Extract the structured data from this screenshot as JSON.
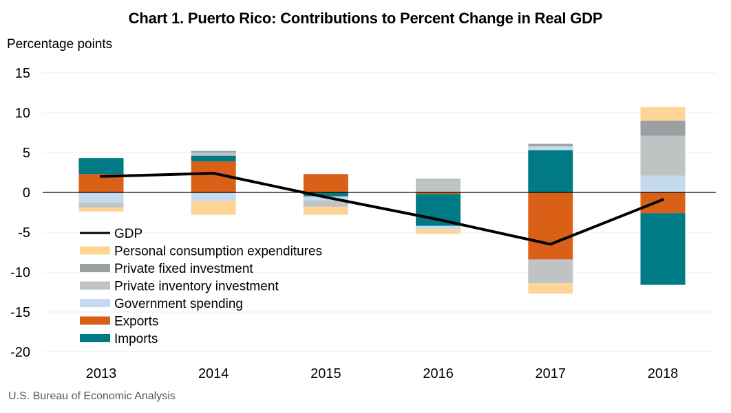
{
  "chart_data": {
    "type": "bar",
    "stacked": true,
    "title": "Chart 1. Puerto Rico: Contributions to Percent Change in Real GDP",
    "ylabel": "Percentage points",
    "xlabel": "",
    "source": "U.S. Bureau of Economic Analysis",
    "categories": [
      "2013",
      "2014",
      "2015",
      "2016",
      "2017",
      "2018"
    ],
    "ylim": [
      -20,
      15
    ],
    "yticks": [
      15,
      10,
      5,
      0,
      -5,
      -10,
      -15,
      -20
    ],
    "grid": true,
    "legend_position": "lower-left",
    "series": [
      {
        "name": "Exports",
        "color": "#DA6018",
        "values": [
          2.3,
          3.9,
          2.3,
          -0.2,
          -8.4,
          -2.6
        ]
      },
      {
        "name": "Imports",
        "color": "#007B86",
        "values": [
          2.0,
          0.7,
          -0.5,
          -4.0,
          5.3,
          -9.0
        ]
      },
      {
        "name": "Government spending",
        "color": "#C5D9EF",
        "values": [
          -1.3,
          -1.1,
          -0.5,
          -0.4,
          0.5,
          2.1
        ]
      },
      {
        "name": "Private inventory investment",
        "color": "#BFC3C4",
        "values": [
          -0.6,
          0.4,
          -0.8,
          1.6,
          -3.0,
          5.0
        ]
      },
      {
        "name": "Private fixed investment",
        "color": "#9A9FA1",
        "values": [
          0.0,
          0.2,
          0.0,
          0.1,
          0.3,
          1.9
        ]
      },
      {
        "name": "Personal consumption expenditures",
        "color": "#FFD596",
        "values": [
          -0.5,
          -1.7,
          -1.0,
          -0.6,
          -1.3,
          1.7
        ]
      }
    ],
    "line": {
      "name": "GDP",
      "color": "#000000",
      "values": [
        2.0,
        2.4,
        -0.6,
        -3.4,
        -6.5,
        -0.9
      ]
    },
    "legend": [
      {
        "name": "GDP",
        "kind": "line",
        "color": "#000000"
      },
      {
        "name": "Personal consumption expenditures",
        "kind": "box",
        "color": "#FFD596"
      },
      {
        "name": "Private fixed investment",
        "kind": "box",
        "color": "#9A9FA1"
      },
      {
        "name": "Private inventory investment",
        "kind": "box",
        "color": "#BFC3C4"
      },
      {
        "name": "Government spending",
        "kind": "box",
        "color": "#C5D9EF"
      },
      {
        "name": "Exports",
        "kind": "box",
        "color": "#DA6018"
      },
      {
        "name": "Imports",
        "kind": "box",
        "color": "#007B86"
      }
    ]
  }
}
